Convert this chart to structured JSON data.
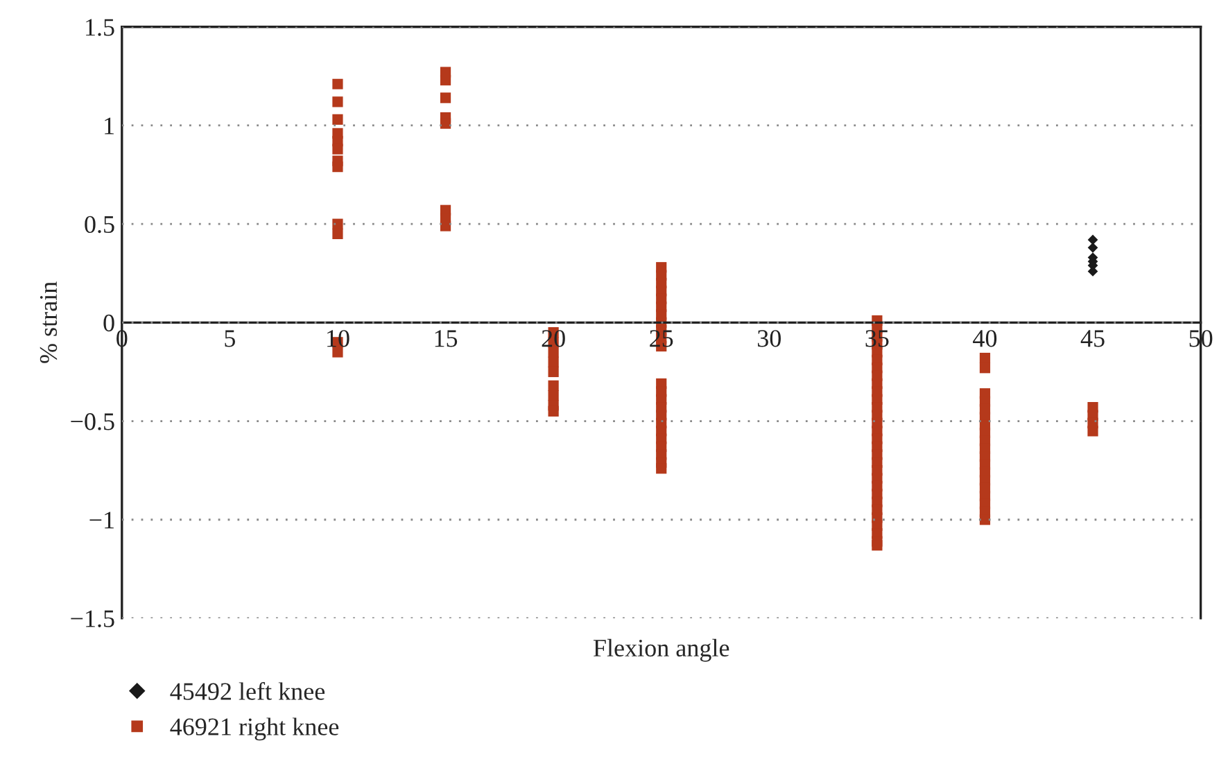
{
  "chart_data": {
    "type": "scatter",
    "xlabel": "Flexion angle",
    "ylabel": "% strain",
    "xlim": [
      0,
      50
    ],
    "xticks": [
      0,
      5,
      10,
      15,
      20,
      25,
      30,
      35,
      40,
      45,
      50
    ],
    "ylim": [
      -1.5,
      1.5
    ],
    "yticks": [
      {
        "value": -1.5,
        "label": "−1.5"
      },
      {
        "value": -1,
        "label": "−1"
      },
      {
        "value": -0.5,
        "label": "−0.5"
      },
      0,
      0.5,
      1,
      1.5
    ],
    "grid": "y",
    "legend": "bottom left",
    "series": [
      {
        "name": "45492 left knee",
        "color": "#1a1a1a",
        "marker": "diamond",
        "x": [
          45,
          45,
          45,
          45,
          45,
          45
        ],
        "values": [
          0.42,
          0.38,
          0.33,
          0.31,
          0.29,
          0.26
        ]
      },
      {
        "name": "46921 right knee",
        "color": "#b5391b",
        "marker": "square",
        "x": [
          10,
          10,
          10,
          10,
          10,
          10,
          10,
          10,
          10,
          10,
          10,
          10,
          15,
          15,
          15,
          15,
          15,
          15,
          15,
          15,
          20,
          20,
          20,
          20,
          20,
          20,
          20,
          20,
          20,
          25,
          25,
          25,
          25,
          25,
          25,
          25,
          25,
          25,
          25,
          25,
          25,
          25,
          25,
          25,
          25,
          25,
          25,
          25,
          25,
          25,
          25,
          25,
          35,
          35,
          35,
          35,
          35,
          35,
          35,
          35,
          35,
          35,
          35,
          35,
          35,
          35,
          35,
          35,
          35,
          35,
          35,
          35,
          35,
          35,
          35,
          35,
          35,
          35,
          35,
          35,
          35,
          35,
          40,
          40,
          40,
          40,
          40,
          40,
          40,
          40,
          40,
          40,
          40,
          40,
          40,
          40,
          40,
          40,
          40,
          40,
          40,
          45,
          45,
          45,
          45
        ],
        "values": [
          1.21,
          1.12,
          1.03,
          0.96,
          0.92,
          0.88,
          0.82,
          0.79,
          0.5,
          0.45,
          -0.1,
          -0.15,
          1.27,
          1.23,
          1.14,
          1.04,
          1.01,
          0.57,
          0.53,
          0.49,
          -0.05,
          -0.1,
          -0.15,
          -0.2,
          -0.25,
          -0.32,
          -0.37,
          -0.42,
          -0.45,
          0.28,
          0.24,
          0.2,
          0.16,
          0.12,
          0.08,
          0.04,
          0.0,
          -0.04,
          -0.08,
          -0.12,
          -0.31,
          -0.35,
          -0.39,
          -0.43,
          -0.47,
          -0.51,
          -0.55,
          -0.59,
          -0.63,
          -0.67,
          -0.71,
          -0.74,
          0.01,
          -0.03,
          -0.07,
          -0.11,
          -0.15,
          -0.19,
          -0.23,
          -0.27,
          -0.31,
          -0.35,
          -0.39,
          -0.43,
          -0.47,
          -0.51,
          -0.55,
          -0.59,
          -0.63,
          -0.67,
          -0.71,
          -0.75,
          -0.79,
          -0.83,
          -0.87,
          -0.91,
          -0.95,
          -0.99,
          -1.03,
          -1.07,
          -1.11,
          -1.13,
          -0.18,
          -0.23,
          -0.36,
          -0.4,
          -0.44,
          -0.48,
          -0.52,
          -0.56,
          -0.6,
          -0.64,
          -0.68,
          -0.72,
          -0.76,
          -0.8,
          -0.84,
          -0.88,
          -0.92,
          -0.96,
          -1.0,
          -0.43,
          -0.47,
          -0.51,
          -0.55
        ]
      }
    ]
  }
}
